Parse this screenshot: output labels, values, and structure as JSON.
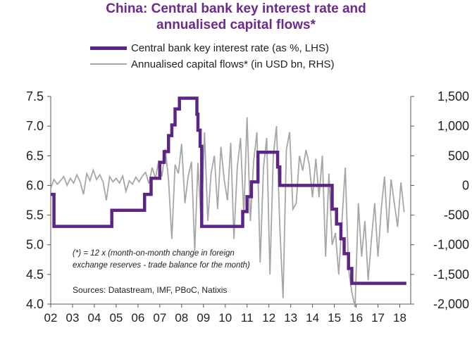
{
  "title": {
    "line1": "China: Central bank key interest rate and",
    "line2": "annualised capital flows*"
  },
  "legend": [
    {
      "label": "Central bank key interest rate (as %, LHS)",
      "color": "#5b2585"
    },
    {
      "label": "Annualised capital flows* (in USD bn, RHS)",
      "color": "#a6a6a6"
    }
  ],
  "note": {
    "line1": "(*) = 12 x (month-on-month change in foreign",
    "line2": "exchange reserves - trade balance for the month)"
  },
  "source": "Sources: Datastream, IMF, PBoC, Natixis",
  "chart_data": {
    "type": "line",
    "x_axis": {
      "label": "",
      "range": [
        2002.0,
        2018.5
      ],
      "ticks": [
        "02",
        "03",
        "04",
        "05",
        "06",
        "07",
        "08",
        "09",
        "10",
        "11",
        "12",
        "13",
        "14",
        "15",
        "16",
        "17",
        "18"
      ]
    },
    "y_left": {
      "label": "",
      "range": [
        4.0,
        7.5
      ],
      "ticks": [
        "4.0",
        "4.5",
        "5.0",
        "5.5",
        "6.0",
        "6.5",
        "7.0",
        "7.5"
      ]
    },
    "y_right": {
      "label": "",
      "range": [
        -2000,
        1500
      ],
      "ticks": [
        "-2,000",
        "-1,500",
        "-1,000",
        "-500",
        "0",
        "500",
        "1,000",
        "1,500"
      ]
    },
    "grid": false,
    "legend_position": "top",
    "series": [
      {
        "name": "Central bank key interest rate (as %, LHS)",
        "axis": "left",
        "color": "#5b2585",
        "step": true,
        "x": [
          2002.0,
          2002.15,
          2004.8,
          2006.3,
          2006.6,
          2007.0,
          2007.2,
          2007.4,
          2007.55,
          2007.7,
          2007.9,
          2008.7,
          2008.75,
          2008.85,
          2008.92,
          2010.8,
          2011.0,
          2011.2,
          2011.5,
          2012.4,
          2012.5,
          2014.9,
          2015.1,
          2015.3,
          2015.45,
          2015.65,
          2015.8,
          2018.3
        ],
        "y": [
          5.85,
          5.31,
          5.58,
          5.85,
          6.12,
          6.39,
          6.57,
          6.84,
          7.02,
          7.29,
          7.47,
          7.2,
          6.93,
          6.66,
          5.31,
          5.56,
          5.81,
          6.06,
          6.56,
          6.31,
          6.0,
          5.6,
          5.35,
          5.1,
          4.85,
          4.6,
          4.35,
          4.35
        ]
      },
      {
        "name": "Annualised capital flows* (in USD bn, RHS)",
        "axis": "right",
        "color": "#a6a6a6",
        "step": false,
        "x": [
          2002.0,
          2002.15,
          2002.3,
          2002.45,
          2002.6,
          2002.75,
          2002.9,
          2003.05,
          2003.2,
          2003.35,
          2003.5,
          2003.65,
          2003.8,
          2003.95,
          2004.1,
          2004.25,
          2004.4,
          2004.55,
          2004.7,
          2004.85,
          2005.0,
          2005.15,
          2005.3,
          2005.45,
          2005.6,
          2005.75,
          2005.9,
          2006.05,
          2006.2,
          2006.35,
          2006.5,
          2006.65,
          2006.8,
          2006.95,
          2007.1,
          2007.25,
          2007.4,
          2007.55,
          2007.7,
          2007.85,
          2008.0,
          2008.15,
          2008.3,
          2008.45,
          2008.6,
          2008.75,
          2008.9,
          2009.05,
          2009.2,
          2009.35,
          2009.5,
          2009.65,
          2009.8,
          2009.95,
          2010.1,
          2010.25,
          2010.4,
          2010.55,
          2010.7,
          2010.85,
          2011.0,
          2011.15,
          2011.3,
          2011.45,
          2011.6,
          2011.75,
          2011.9,
          2012.05,
          2012.2,
          2012.35,
          2012.5,
          2012.65,
          2012.8,
          2012.95,
          2013.1,
          2013.25,
          2013.4,
          2013.55,
          2013.7,
          2013.85,
          2014.0,
          2014.15,
          2014.3,
          2014.45,
          2014.6,
          2014.75,
          2014.9,
          2015.05,
          2015.2,
          2015.35,
          2015.5,
          2015.65,
          2015.8,
          2015.95,
          2016.1,
          2016.25,
          2016.4,
          2016.55,
          2016.7,
          2016.85,
          2017.0,
          2017.15,
          2017.3,
          2017.45,
          2017.6,
          2017.75,
          2017.9,
          2018.05,
          2018.2
        ],
        "y": [
          -50,
          100,
          20,
          80,
          150,
          0,
          120,
          40,
          180,
          60,
          -150,
          200,
          80,
          260,
          100,
          180,
          60,
          -250,
          150,
          60,
          120,
          40,
          160,
          -100,
          80,
          20,
          140,
          60,
          160,
          220,
          30,
          300,
          120,
          420,
          150,
          620,
          100,
          -900,
          350,
          200,
          700,
          -300,
          150,
          400,
          -1100,
          380,
          -700,
          900,
          -600,
          200,
          500,
          -400,
          650,
          100,
          -250,
          720,
          -900,
          300,
          800,
          -500,
          1150,
          -600,
          400,
          900,
          -1300,
          300,
          800,
          -1500,
          500,
          1000,
          -700,
          -1900,
          600,
          900,
          -400,
          -300,
          500,
          250,
          600,
          350,
          -200,
          450,
          -200,
          500,
          -1200,
          200,
          -1000,
          -800,
          -1500,
          -600,
          300,
          -1400,
          -1800,
          -2050,
          -300,
          -1200,
          -600,
          -1600,
          -900,
          -300,
          -1200,
          -400,
          150,
          -800,
          100,
          -300,
          -700,
          50,
          -450
        ]
      }
    ]
  }
}
